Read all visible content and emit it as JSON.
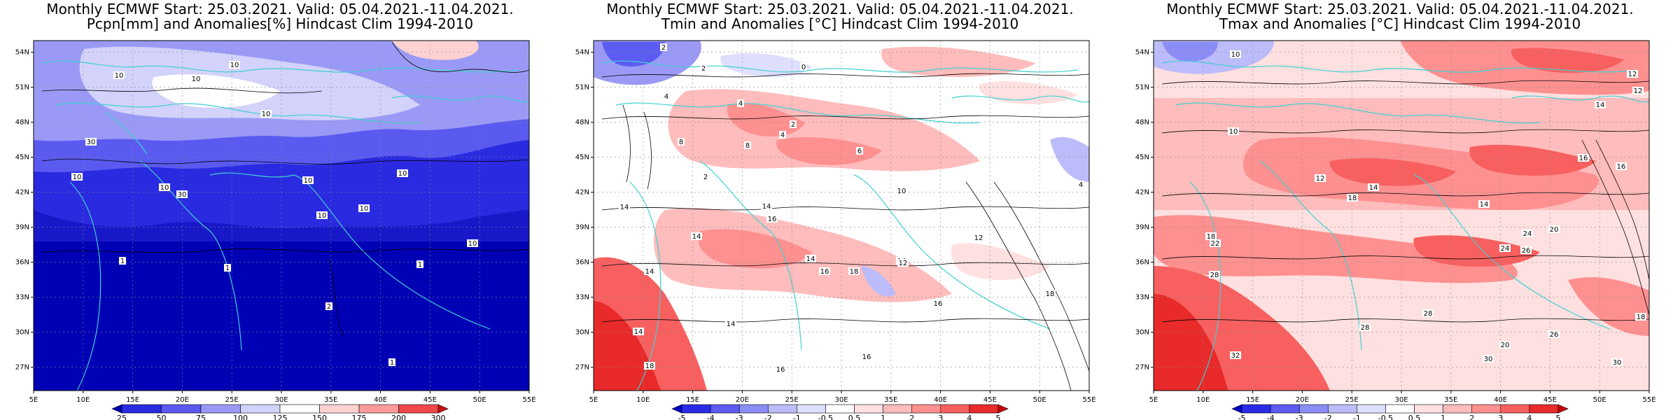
{
  "panels": [
    {
      "title_line1": "Monthly ECMWF Start: 25.03.2021. Valid: 05.04.2021.-11.04.2021.",
      "title_line2": "Pcpn[mm] and Anomalies[%] Hindcast Clim 1994-2010",
      "colorbar": {
        "labels": [
          "25",
          "50",
          "75",
          "100",
          "125",
          "150",
          "175",
          "200",
          "300"
        ],
        "colors": [
          "#0000b4",
          "#2a2ae0",
          "#5a5af0",
          "#9a9af6",
          "#d2d2fa",
          "#ffffff",
          "#ffd2d2",
          "#ff9a9a",
          "#f04848",
          "#c81010"
        ]
      },
      "contour_labels": [
        "10",
        "10",
        "10",
        "10",
        "30",
        "10",
        "10",
        "10",
        "30",
        "10",
        "10",
        "10",
        "10",
        "1",
        "1",
        "1",
        "1",
        "2"
      ]
    },
    {
      "title_line1": "Monthly ECMWF Start: 25.03.2021. Valid: 05.04.2021.-11.04.2021.",
      "title_line2": "Tmin and Anomalies [°C] Hindcast Clim 1994-2010",
      "colorbar": {
        "labels": [
          "-5",
          "-4",
          "-3",
          "-2",
          "-1",
          "-0.5",
          "0.5",
          "1",
          "2",
          "3",
          "4",
          "5"
        ],
        "colors": [
          "#0000c8",
          "#2a2ae6",
          "#5c5cf2",
          "#8c8cf6",
          "#bcbcfa",
          "#dedefd",
          "#ffffff",
          "#ffe0e0",
          "#ffbcbc",
          "#ff9090",
          "#f86060",
          "#e82a2a",
          "#c80000"
        ]
      },
      "contour_labels": [
        "2",
        "2",
        "0",
        "4",
        "4",
        "2",
        "4",
        "8",
        "8",
        "6",
        "2",
        "10",
        "14",
        "14",
        "14",
        "16",
        "14",
        "16",
        "14",
        "14",
        "12",
        "16",
        "18",
        "14",
        "14",
        "16",
        "18",
        "16",
        "12",
        "18",
        "4"
      ]
    },
    {
      "title_line1": "Monthly ECMWF Start: 25.03.2021. Valid: 05.04.2021.-11.04.2021.",
      "title_line2": "Tmax and Anomalies [°C] Hindcast Clim 1994-2010",
      "colorbar": {
        "labels": [
          "-5",
          "-4",
          "-3",
          "-2",
          "-1",
          "-0.5",
          "0.5",
          "1",
          "2",
          "3",
          "4",
          "5"
        ],
        "colors": [
          "#0000c8",
          "#2a2ae6",
          "#5c5cf2",
          "#8c8cf6",
          "#bcbcfa",
          "#dedefd",
          "#ffffff",
          "#ffe0e0",
          "#ffbcbc",
          "#ff9090",
          "#f86060",
          "#e82a2a",
          "#c80000"
        ]
      },
      "contour_labels": [
        "10",
        "12",
        "12",
        "14",
        "10",
        "16",
        "12",
        "14",
        "18",
        "14",
        "16",
        "20",
        "18",
        "22",
        "24",
        "26",
        "24",
        "28",
        "28",
        "28",
        "32",
        "30",
        "26",
        "20",
        "18",
        "30"
      ]
    }
  ],
  "axes": {
    "lon_labels": [
      "5E",
      "10E",
      "15E",
      "20E",
      "25E",
      "30E",
      "35E",
      "40E",
      "45E",
      "50E",
      "55E"
    ],
    "lat_labels": [
      "54N",
      "51N",
      "48N",
      "45N",
      "42N",
      "39N",
      "36N",
      "33N",
      "30N",
      "27N"
    ],
    "lon_range": [
      5,
      55
    ],
    "lat_range": [
      25,
      55
    ]
  }
}
